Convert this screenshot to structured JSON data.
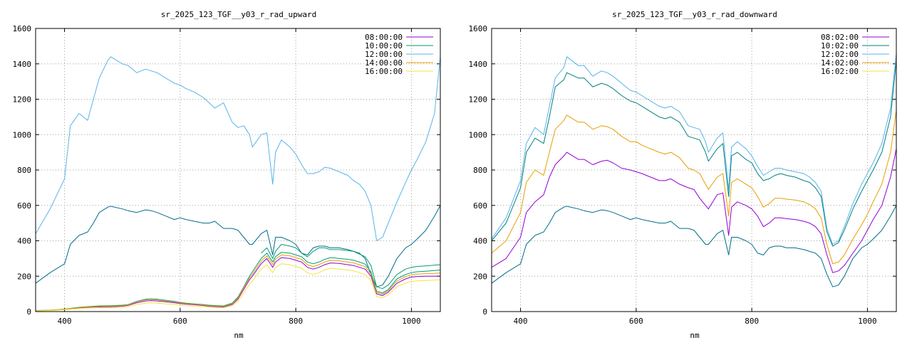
{
  "chart_data": [
    {
      "type": "line",
      "title": "sr_2025_123_TGF__y03_r_rad_upward",
      "xlabel": "nm",
      "ylabel": "",
      "xlim": [
        350,
        1050
      ],
      "ylim": [
        0,
        1600
      ],
      "xticks": [
        400,
        600,
        800,
        1000
      ],
      "yticks": [
        0,
        200,
        400,
        600,
        800,
        1000,
        1200,
        1400,
        1600
      ],
      "grid": true,
      "legend": "top-right",
      "x": [
        350,
        375,
        400,
        410,
        425,
        440,
        450,
        460,
        475,
        480,
        500,
        510,
        525,
        540,
        550,
        560,
        575,
        590,
        600,
        610,
        625,
        640,
        650,
        660,
        675,
        690,
        700,
        710,
        720,
        725,
        740,
        750,
        760,
        765,
        775,
        790,
        800,
        810,
        820,
        830,
        840,
        850,
        860,
        875,
        890,
        900,
        910,
        920,
        930,
        940,
        950,
        960,
        975,
        990,
        1000,
        1010,
        1025,
        1040,
        1050
      ],
      "series": [
        {
          "name": "08:00:00",
          "color": "#9400d3",
          "values": [
            5,
            7,
            12,
            15,
            20,
            24,
            25,
            26,
            27,
            27,
            30,
            35,
            50,
            60,
            62,
            60,
            55,
            50,
            45,
            42,
            38,
            34,
            30,
            28,
            26,
            40,
            70,
            125,
            180,
            200,
            270,
            300,
            250,
            280,
            305,
            300,
            290,
            280,
            250,
            240,
            250,
            265,
            275,
            272,
            265,
            260,
            250,
            240,
            200,
            100,
            90,
            110,
            160,
            185,
            195,
            198,
            200,
            200,
            200
          ]
        },
        {
          "name": "10:00:00",
          "color": "#009e73",
          "values": [
            6,
            8,
            14,
            18,
            24,
            28,
            30,
            32,
            33,
            33,
            36,
            40,
            58,
            70,
            72,
            70,
            64,
            58,
            52,
            48,
            44,
            40,
            36,
            34,
            32,
            48,
            82,
            140,
            200,
            225,
            300,
            330,
            280,
            310,
            335,
            330,
            320,
            310,
            280,
            270,
            280,
            295,
            305,
            300,
            295,
            290,
            280,
            268,
            225,
            115,
            105,
            125,
            185,
            210,
            220,
            225,
            228,
            232,
            235
          ]
        },
        {
          "name": "12:00:00",
          "color": "#56b4e9",
          "values": [
            440,
            580,
            750,
            1050,
            1120,
            1080,
            1200,
            1320,
            1420,
            1440,
            1400,
            1390,
            1350,
            1370,
            1360,
            1350,
            1320,
            1290,
            1280,
            1260,
            1240,
            1210,
            1180,
            1150,
            1180,
            1070,
            1040,
            1050,
            1000,
            930,
            1000,
            1010,
            720,
            900,
            970,
            930,
            890,
            830,
            780,
            780,
            790,
            815,
            810,
            790,
            770,
            740,
            720,
            680,
            600,
            400,
            420,
            500,
            620,
            730,
            800,
            860,
            960,
            1120,
            1440
          ]
        },
        {
          "name": "14:00:00",
          "color": "#e69f00",
          "values": [
            5,
            8,
            13,
            17,
            22,
            26,
            28,
            29,
            30,
            30,
            33,
            38,
            55,
            66,
            68,
            66,
            60,
            54,
            49,
            45,
            41,
            37,
            33,
            31,
            29,
            44,
            76,
            135,
            190,
            212,
            285,
            315,
            265,
            295,
            320,
            315,
            305,
            295,
            265,
            255,
            265,
            280,
            290,
            287,
            280,
            275,
            265,
            254,
            212,
            108,
            98,
            118,
            172,
            198,
            208,
            212,
            214,
            216,
            218
          ]
        },
        {
          "name": "16:00:00",
          "color": "#f0e442",
          "values": [
            4,
            6,
            10,
            13,
            17,
            20,
            21,
            22,
            22,
            22,
            24,
            28,
            40,
            48,
            50,
            48,
            44,
            40,
            36,
            33,
            30,
            27,
            24,
            22,
            21,
            32,
            58,
            105,
            155,
            172,
            240,
            265,
            220,
            250,
            270,
            265,
            255,
            245,
            220,
            210,
            220,
            235,
            245,
            240,
            235,
            230,
            220,
            210,
            175,
            85,
            78,
            95,
            140,
            162,
            170,
            174,
            176,
            178,
            180
          ]
        }
      ],
      "overlay": [
        {
          "color": "#006e8a",
          "values": [
            160,
            220,
            270,
            380,
            430,
            450,
            500,
            560,
            590,
            595,
            580,
            570,
            560,
            575,
            570,
            560,
            540,
            520,
            530,
            520,
            510,
            500,
            500,
            510,
            470,
            470,
            460,
            420,
            380,
            380,
            440,
            460,
            320,
            420,
            420,
            400,
            380,
            330,
            320,
            360,
            370,
            370,
            360,
            360,
            350,
            340,
            330,
            300,
            210,
            140,
            150,
            200,
            300,
            360,
            380,
            410,
            460,
            540,
            600
          ]
        },
        {
          "color": "#009e73",
          "values": [
            null,
            null,
            null,
            null,
            null,
            null,
            null,
            null,
            null,
            null,
            null,
            null,
            null,
            null,
            null,
            null,
            null,
            null,
            null,
            null,
            null,
            null,
            null,
            null,
            null,
            null,
            null,
            null,
            null,
            null,
            330,
            360,
            300,
            340,
            380,
            370,
            360,
            330,
            310,
            340,
            360,
            360,
            350,
            350,
            345,
            340,
            325,
            310,
            260,
            140,
            130,
            150,
            210,
            240,
            250,
            255,
            258,
            262,
            265
          ]
        }
      ]
    },
    {
      "type": "line",
      "title": "sr_2025_123_TGF__y03_r_rad_downward",
      "xlabel": "nm",
      "ylabel": "",
      "xlim": [
        350,
        1050
      ],
      "ylim": [
        0,
        1600
      ],
      "xticks": [
        400,
        600,
        800,
        1000
      ],
      "yticks": [
        0,
        200,
        400,
        600,
        800,
        1000,
        1200,
        1400,
        1600
      ],
      "grid": true,
      "legend": "top-right",
      "x": [
        350,
        375,
        400,
        410,
        425,
        440,
        450,
        460,
        475,
        480,
        500,
        510,
        525,
        540,
        550,
        560,
        575,
        590,
        600,
        610,
        625,
        640,
        650,
        660,
        675,
        690,
        700,
        710,
        720,
        725,
        740,
        750,
        760,
        765,
        775,
        790,
        800,
        810,
        820,
        830,
        840,
        850,
        860,
        875,
        890,
        900,
        910,
        920,
        930,
        940,
        950,
        960,
        975,
        990,
        1000,
        1010,
        1025,
        1040,
        1050
      ],
      "series": [
        {
          "name": "08:02:00",
          "color": "#9400d3",
          "values": [
            250,
            300,
            420,
            560,
            620,
            660,
            760,
            830,
            880,
            900,
            860,
            860,
            830,
            850,
            855,
            840,
            810,
            800,
            790,
            780,
            760,
            740,
            740,
            750,
            720,
            700,
            690,
            640,
            600,
            580,
            660,
            670,
            430,
            590,
            620,
            600,
            580,
            540,
            480,
            500,
            530,
            530,
            525,
            520,
            510,
            500,
            480,
            440,
            320,
            220,
            230,
            260,
            330,
            400,
            460,
            520,
            600,
            760,
            920
          ]
        },
        {
          "name": "10:02:00",
          "color": "#008080",
          "values": [
            400,
            500,
            700,
            900,
            980,
            950,
            1100,
            1270,
            1310,
            1350,
            1320,
            1320,
            1270,
            1290,
            1280,
            1260,
            1220,
            1190,
            1180,
            1160,
            1130,
            1100,
            1090,
            1100,
            1070,
            990,
            980,
            970,
            900,
            850,
            920,
            950,
            650,
            880,
            900,
            860,
            840,
            780,
            740,
            750,
            770,
            780,
            770,
            760,
            740,
            730,
            700,
            650,
            450,
            370,
            390,
            460,
            580,
            680,
            740,
            800,
            900,
            1100,
            1420
          ]
        },
        {
          "name": "12:02:00",
          "color": "#56b4e9",
          "values": [
            410,
            530,
            740,
            950,
            1040,
            1000,
            1160,
            1320,
            1380,
            1440,
            1390,
            1390,
            1330,
            1360,
            1350,
            1330,
            1290,
            1250,
            1240,
            1220,
            1190,
            1160,
            1150,
            1160,
            1130,
            1050,
            1040,
            1030,
            960,
            900,
            980,
            1010,
            690,
            930,
            960,
            920,
            880,
            820,
            770,
            790,
            810,
            810,
            800,
            790,
            780,
            760,
            730,
            680,
            470,
            380,
            400,
            480,
            610,
            720,
            780,
            840,
            950,
            1150,
            1460
          ]
        },
        {
          "name": "14:02:00",
          "color": "#e69f00",
          "values": [
            330,
            400,
            560,
            730,
            800,
            770,
            900,
            1030,
            1080,
            1110,
            1070,
            1070,
            1030,
            1050,
            1045,
            1030,
            990,
            960,
            960,
            940,
            920,
            900,
            890,
            900,
            870,
            810,
            800,
            780,
            720,
            690,
            760,
            780,
            540,
            730,
            750,
            720,
            700,
            650,
            590,
            610,
            640,
            640,
            635,
            630,
            620,
            605,
            580,
            530,
            380,
            270,
            280,
            320,
            410,
            490,
            550,
            620,
            720,
            900,
            1140
          ]
        },
        {
          "name": "16:02:00",
          "color": "#f0e442",
          "values": [
            null,
            null,
            null,
            null,
            null,
            null,
            null,
            null,
            null,
            null,
            null,
            null,
            null,
            null,
            null,
            null,
            null,
            null,
            null,
            null,
            null,
            null,
            null,
            null,
            null,
            null,
            null,
            null,
            null,
            null,
            null,
            null,
            null,
            null,
            null,
            null,
            null,
            null,
            null,
            null,
            null,
            null,
            null,
            null,
            null,
            null,
            null,
            null,
            null,
            null,
            null,
            null,
            null,
            null,
            null,
            null,
            null,
            null,
            null
          ]
        }
      ],
      "overlay": [
        {
          "color": "#006e8a",
          "values": [
            160,
            220,
            270,
            380,
            430,
            450,
            500,
            560,
            590,
            595,
            580,
            570,
            560,
            575,
            570,
            560,
            540,
            520,
            530,
            520,
            510,
            500,
            500,
            510,
            470,
            470,
            460,
            420,
            380,
            380,
            440,
            460,
            320,
            420,
            420,
            400,
            380,
            330,
            320,
            360,
            370,
            370,
            360,
            360,
            350,
            340,
            330,
            300,
            210,
            140,
            150,
            200,
            300,
            360,
            380,
            410,
            460,
            540,
            600
          ]
        }
      ]
    }
  ]
}
